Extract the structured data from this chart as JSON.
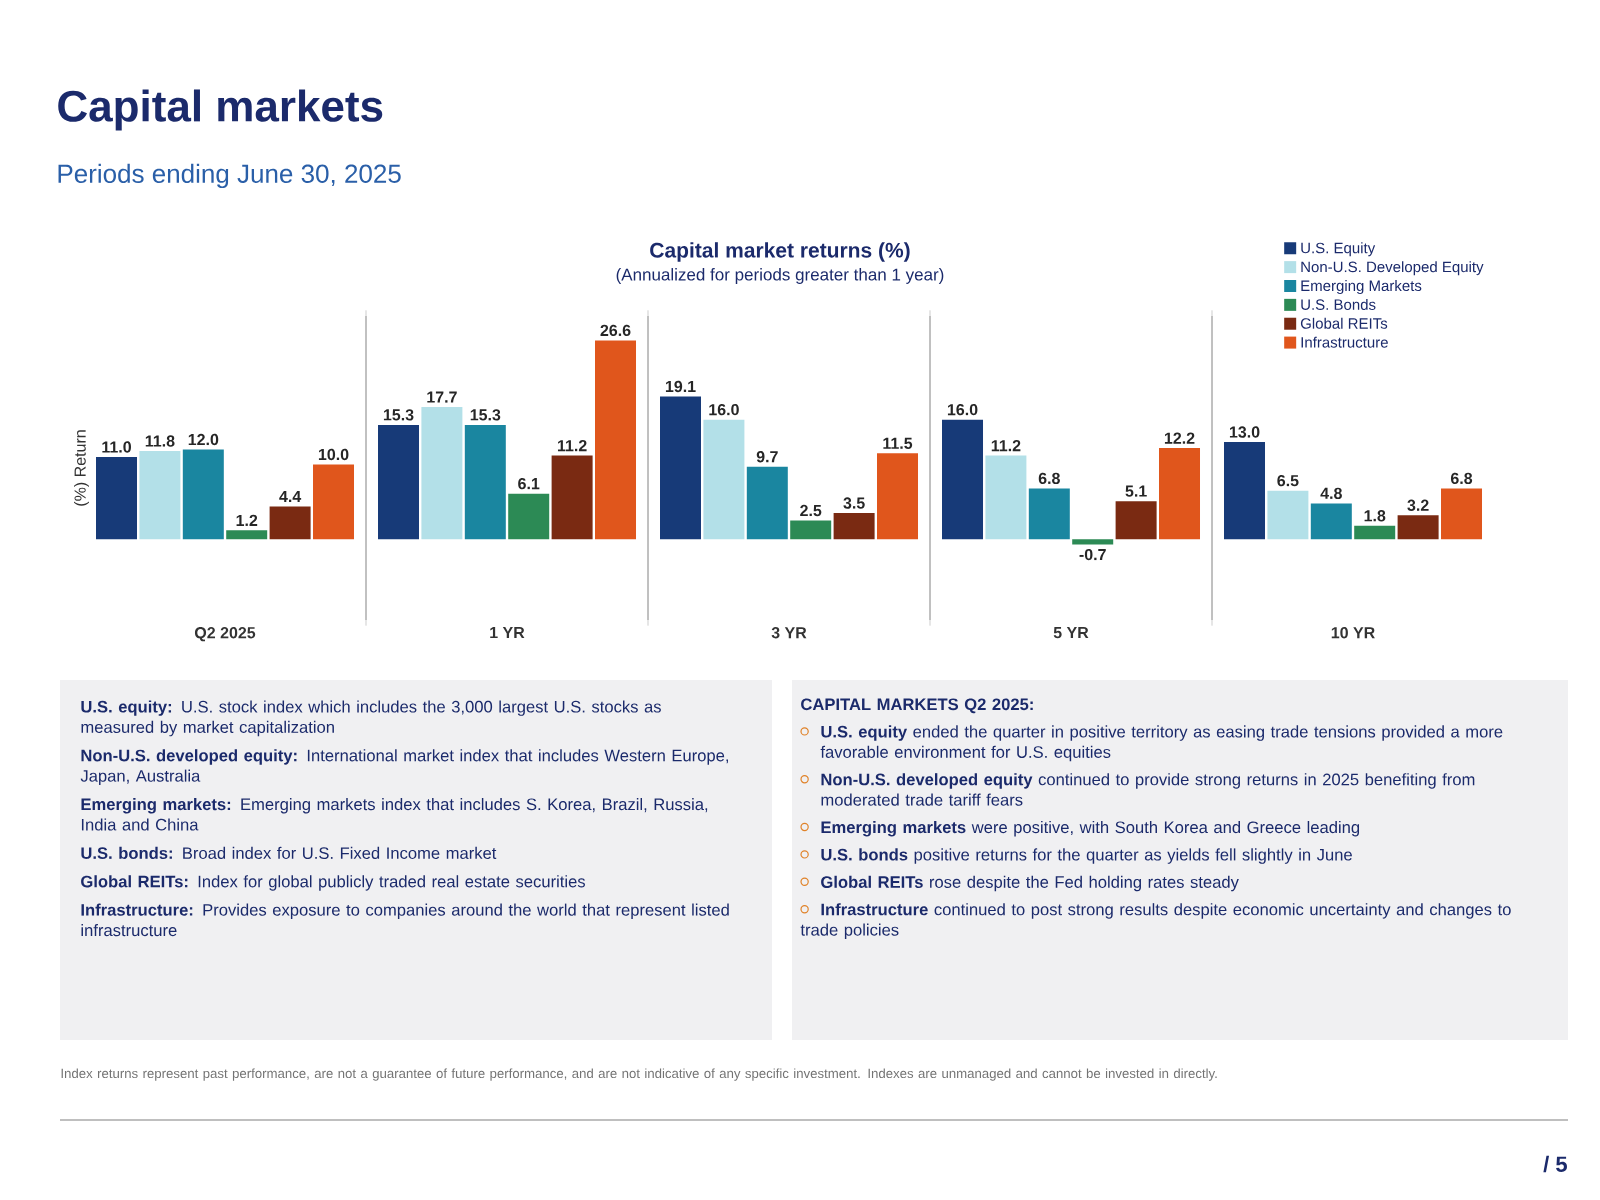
{
  "chart_data": {
    "type": "bar",
    "title": "Capital markets",
    "subtitle": "Periods ending June 30, 2025",
    "ylabel": "(%) Return",
    "categories": [
      "Q2 2025",
      "1 YR",
      "3 YR",
      "5 YR",
      "10 YR"
    ],
    "series": [
      {
        "name": "U.S. Equity",
        "color": "#173a78",
        "values": [
          11.0,
          15.3,
          19.1,
          16.0,
          13.0
        ],
        "value_labels": [
          "11.0",
          "15.3",
          "19.1",
          "16.0",
          "13.0"
        ]
      },
      {
        "name": "Non-U.S. Developed Equity",
        "color": "#b3e0e8",
        "values": [
          11.8,
          17.7,
          16.0,
          11.2,
          6.5
        ],
        "value_labels": [
          "11.8",
          "17.7",
          "16.0",
          "11.2",
          "6.5"
        ]
      },
      {
        "name": "Emerging Markets",
        "color": "#1a86a0",
        "values": [
          12.0,
          15.3,
          9.7,
          6.8,
          4.8
        ],
        "value_labels": [
          "12.0",
          "15.3",
          "9.7",
          "6.8",
          "4.8"
        ]
      },
      {
        "name": "U.S. Bonds",
        "color": "#2c8a55",
        "values": [
          1.2,
          6.1,
          2.5,
          -0.7,
          1.8
        ],
        "value_labels": [
          "1.2",
          "6.1",
          "2.5",
          "-0.7",
          "1.8"
        ]
      },
      {
        "name": "Global REITs",
        "color": "#7a2a12",
        "values": [
          4.4,
          11.2,
          3.5,
          5.1,
          3.2
        ],
        "value_labels": [
          "4.4",
          "11.2",
          "3.5",
          "5.1",
          "3.2"
        ]
      },
      {
        "name": "Infrastructure",
        "color": "#e0561c",
        "values": [
          10.0,
          26.6,
          11.5,
          12.2,
          6.8
        ],
        "value_labels": [
          "10.0",
          "26.6",
          "11.5",
          "12.2",
          "6.8"
        ]
      }
    ],
    "legend": "top right",
    "annotations": [
      "Capital market returns (%)",
      "(Annualized for periods greater than 1 year)",
      "**U.S. equity:** U.S. stock index which includes the 3,000 largest U.S. stocks as measured by market capitalization",
      "**Non-U.S. developed equity:** International market index that includes Western Europe, Japan, Australia",
      "**Emerging markets:** Emerging markets index that includes S. Korea, Brazil, Russia, India and China",
      "**U.S. bonds:** Broad index for U.S. Fixed Income market",
      "**Global REITs:** Index for global publicly traded real estate securities",
      "**Infrastructure:** Provides exposure to companies around the world that represent listed infrastructure",
      "CAPITAL MARKETS Q2 2025:",
      "**U.S. equity** ended the quarter in positive territory as easing trade tensions provided a more favorable environment for U.S. equities",
      "**Non-U.S. developed equity** continued to provide strong returns in 2025 benefiting from moderated trade tariff fears",
      "**Emerging markets** were positive, with South Korea and Greece leading",
      "**U.S. bonds** positive returns for the quarter as yields fell slightly in June",
      "**Global REITs** rose despite the Fed holding rates steady",
      "**Infrastructure** continued to post strong results despite economic uncertainty and changes to trade policies",
      "Index returns represent past performance, are not a guarantee of future performance, and are not indicative of any specific investment. Indexes are unmanaged and cannot be invested in directly.",
      "/ 5"
    ]
  }
}
